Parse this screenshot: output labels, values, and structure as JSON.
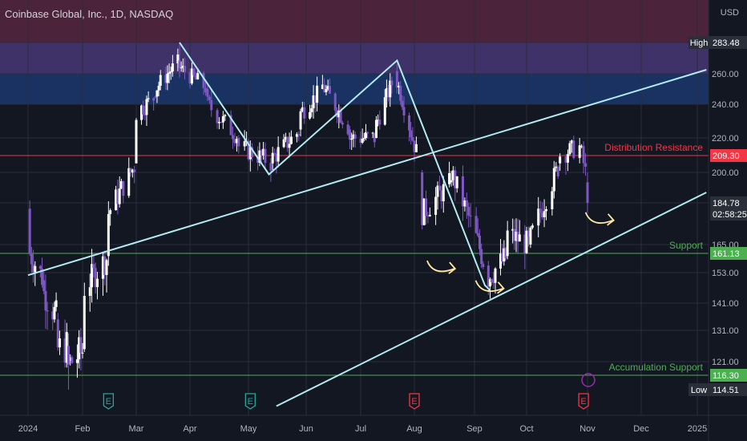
{
  "header": {
    "title": "Coinbase Global, Inc., 1D, NASDAQ",
    "currency": "USD"
  },
  "chart_data": {
    "type": "candlestick",
    "y_ticks": [
      121.0,
      131.0,
      141.0,
      153.0,
      165.0,
      184.78,
      200.0,
      220.0,
      240.0,
      260.0,
      283.48
    ],
    "y_tick_labels": [
      "121.00",
      "131.00",
      "141.00",
      "153.00",
      "165.00",
      "200.00",
      "220.00",
      "240.00",
      "260.00"
    ],
    "x_labels": [
      "2024",
      "Feb",
      "Mar",
      "Apr",
      "May",
      "Jun",
      "Jul",
      "Aug",
      "Sep",
      "Oct",
      "Nov",
      "Dec",
      "2025"
    ],
    "price_labels": [
      {
        "name": "High",
        "value": "283.48",
        "color": "#ffffff"
      },
      {
        "name": "Distribution Resistance",
        "value": "209.30",
        "color": "#f23645"
      },
      {
        "name": "current",
        "value": "184.78",
        "sub": "02:58:25",
        "color": "#ffffff"
      },
      {
        "name": "Support",
        "value": "161.13",
        "color": "#4caf50"
      },
      {
        "name": "Accumulation Support",
        "value": "116.30",
        "color": "#4caf50"
      },
      {
        "name": "Low",
        "value": "114.51",
        "color": "#ffffff"
      }
    ],
    "annotations": [
      "Distribution Resistance",
      "Support",
      "Accumulation Support"
    ],
    "zones": [
      {
        "name": "distribution-zone",
        "y_from": 283.48,
        "y_to": 300,
        "color": "#5a2741"
      },
      {
        "name": "purple-zone",
        "y_from": 260,
        "y_to": 283.48,
        "color": "#4b3a7a"
      },
      {
        "name": "blue-zone",
        "y_from": 240,
        "y_to": 260,
        "color": "#1c3a73"
      }
    ],
    "levels": [
      {
        "name": "distribution-resistance",
        "value": 209.3,
        "color": "#f23645"
      },
      {
        "name": "support",
        "value": 161.13,
        "color": "#4caf50"
      },
      {
        "name": "accumulation-support",
        "value": 116.3,
        "color": "#4caf50"
      }
    ],
    "trendlines": [
      {
        "name": "lower-trend",
        "from": [
          "2024-01-01",
          152
        ],
        "to": [
          "2025-01-06",
          263
        ]
      },
      {
        "name": "upper-channel",
        "from": [
          "2024-05-16",
          109
        ],
        "to": [
          "2025-01-06",
          190
        ]
      }
    ],
    "zigzag": [
      [
        "2024-03-26",
        283.48
      ],
      [
        "2024-05-12",
        199
      ],
      [
        "2024-07-22",
        270
      ],
      [
        "2024-09-07",
        148
      ],
      [
        "2024-09-10",
        146
      ]
    ],
    "events": [
      {
        "name": "earnings-feb",
        "x": "2024-02-15",
        "label": "E",
        "color": "#26a69a"
      },
      {
        "name": "earnings-may",
        "x": "2024-05-02",
        "label": "E",
        "color": "#26a69a"
      },
      {
        "name": "earnings-aug",
        "x": "2024-08-01",
        "label": "E",
        "color": "#f23645"
      },
      {
        "name": "earnings-oct",
        "x": "2024-10-30",
        "label": "E",
        "color": "#f23645"
      }
    ],
    "series": [
      {
        "ohlc_sample": [
          [
            "2024-01-02",
            182,
            185,
            155,
            161
          ],
          [
            "2024-01-10",
            150,
            158,
            140,
            145
          ],
          [
            "2024-01-18",
            135,
            138,
            120,
            125
          ],
          [
            "2024-01-24",
            126,
            130,
            114.51,
            120
          ],
          [
            "2024-02-02",
            125,
            150,
            123,
            147
          ],
          [
            "2024-02-15",
            160,
            185,
            155,
            180
          ],
          [
            "2024-03-01",
            205,
            240,
            200,
            235
          ],
          [
            "2024-03-12",
            245,
            265,
            225,
            250
          ],
          [
            "2024-03-26",
            270,
            283.48,
            260,
            265
          ],
          [
            "2024-04-10",
            250,
            260,
            230,
            240
          ],
          [
            "2024-04-26",
            220,
            230,
            205,
            215
          ],
          [
            "2024-05-14",
            205,
            212,
            199,
            208
          ],
          [
            "2024-05-29",
            225,
            240,
            220,
            235
          ],
          [
            "2024-06-10",
            250,
            258,
            242,
            252
          ],
          [
            "2024-06-25",
            225,
            235,
            210,
            220
          ],
          [
            "2024-07-10",
            220,
            232,
            215,
            228
          ],
          [
            "2024-07-22",
            262,
            270,
            250,
            255
          ],
          [
            "2024-08-05",
            200,
            212,
            165,
            180
          ],
          [
            "2024-08-20",
            195,
            205,
            190,
            200
          ],
          [
            "2024-09-07",
            156,
            162,
            146,
            150
          ],
          [
            "2024-09-20",
            160,
            172,
            158,
            170
          ],
          [
            "2024-10-03",
            165,
            170,
            160,
            168
          ],
          [
            "2024-10-18",
            205,
            212,
            198,
            210
          ],
          [
            "2024-10-29",
            215,
            220,
            205,
            210
          ],
          [
            "2024-11-01",
            195,
            200,
            180,
            184.78
          ]
        ]
      }
    ]
  }
}
